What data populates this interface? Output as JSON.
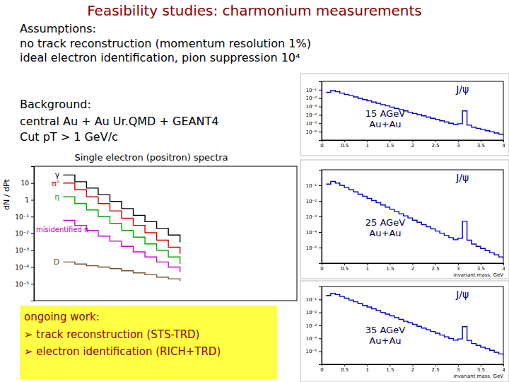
{
  "slide": {
    "title": "Feasibility studies: charmonium measurements",
    "assumptions_heading": "Assumptions:",
    "assumptions": [
      "no track reconstruction (momentum resolution 1%)",
      "ideal electron identification, pion suppression 10⁴"
    ],
    "background_heading": "Background:",
    "background": [
      "central  Au + Au Ur.QMD + GEANT4",
      "Cut pT > 1 GeV/c"
    ],
    "ongoing_heading": "ongoing work:",
    "ongoing": [
      "➢ track reconstruction (STS-TRD)",
      "➢ electron identification (RICH+TRD)"
    ]
  },
  "chart_data": [
    {
      "type": "line",
      "title": "Single electron (positron) spectra",
      "ylabel": "dN / dPt",
      "log": "y",
      "line_style": "step",
      "tick_labels": "y",
      "x": [
        1.0,
        1.2,
        1.4,
        1.6,
        1.8,
        2.0,
        2.2,
        2.4,
        2.6,
        2.8,
        3.0
      ],
      "xlim": [
        0.5,
        5
      ],
      "ylim": [
        1e-06,
        100
      ],
      "yticks": [
        {
          "value": 1e-05,
          "label": "10⁻⁵"
        },
        {
          "value": 0.0001,
          "label": "10⁻⁴"
        },
        {
          "value": 0.001,
          "label": "10⁻³"
        },
        {
          "value": 0.01,
          "label": "10⁻²"
        },
        {
          "value": 0.1,
          "label": "10⁻¹"
        },
        1,
        10
      ],
      "series": [
        {
          "name": "γ",
          "color": "#000000",
          "values": [
            30,
            12,
            5,
            2,
            0.8,
            0.3,
            0.12,
            0.05,
            0.02,
            0.008,
            0.003
          ]
        },
        {
          "name": "π⁰",
          "color": "#dd0000",
          "values": [
            10,
            4,
            1.5,
            0.6,
            0.22,
            0.08,
            0.03,
            0.011,
            0.004,
            0.0015,
            0.0006
          ]
        },
        {
          "name": "η",
          "color": "#00aa00",
          "values": [
            1.5,
            0.6,
            0.25,
            0.1,
            0.04,
            0.015,
            0.006,
            0.0024,
            0.001,
            0.0004,
            0.00015
          ]
        },
        {
          "name": "misidentified π",
          "color": "#cc00cc",
          "values": [
            0.06,
            0.03,
            0.015,
            0.007,
            0.0035,
            0.0017,
            0.0008,
            0.0004,
            0.0002,
            0.0001,
            5e-05
          ]
        },
        {
          "name": "D",
          "color": "#7a5230",
          "values": [
            0.0002,
            0.00015,
            0.00012,
            0.0001,
            8e-05,
            6e-05,
            4.5e-05,
            3.5e-05,
            2.5e-05,
            2e-05,
            1.5e-05
          ]
        }
      ]
    },
    {
      "type": "line",
      "log": "y",
      "line_style": "step",
      "label": [
        "15 AGeV",
        "Au+Au"
      ],
      "peak_label": "J/ψ",
      "peak_x": 3.1,
      "x": [
        0.1,
        0.2,
        0.3,
        0.4,
        0.5,
        0.6,
        0.7,
        0.8,
        0.9,
        1.0,
        1.1,
        1.2,
        1.3,
        1.4,
        1.5,
        1.6,
        1.7,
        1.8,
        1.9,
        2.0,
        2.1,
        2.2,
        2.3,
        2.4,
        2.5,
        2.6,
        2.7,
        2.8,
        2.9,
        3.0,
        3.1,
        3.2,
        3.3,
        3.4,
        3.5,
        3.6,
        3.7,
        3.8,
        3.9,
        4.0
      ],
      "xlim": [
        0,
        4
      ],
      "xticks": [
        0,
        0.5,
        1,
        1.5,
        2,
        2.5,
        3,
        3.5,
        4
      ],
      "ylim": [
        1e-07,
        1
      ],
      "yticks": [
        {
          "value": 1e-06,
          "label": "10⁻⁶"
        },
        {
          "value": 1e-05,
          "label": "10⁻⁵"
        },
        {
          "value": 0.0001,
          "label": "10⁻⁴"
        },
        {
          "value": 0.001,
          "label": "10⁻³"
        },
        {
          "value": 0.01,
          "label": "10⁻²"
        },
        {
          "value": 0.1,
          "label": "10⁻¹"
        }
      ],
      "series": [
        {
          "color": "#0000cc",
          "values": [
            0.05,
            0.08,
            0.06,
            0.04,
            0.028,
            0.02,
            0.014,
            0.0095,
            0.0068,
            0.0048,
            0.0034,
            0.0024,
            0.0017,
            0.0012,
            0.00085,
            0.0006,
            0.00043,
            0.0003,
            0.00021,
            0.00015,
            0.00011,
            7.8e-05,
            5.5e-05,
            3.9e-05,
            2.8e-05,
            2e-05,
            1.4e-05,
            1e-05,
            7.5e-06,
            9e-06,
            0.0003,
            6e-06,
            3.5e-06,
            2.5e-06,
            1.8e-06,
            1.3e-06,
            9.5e-07,
            7e-07,
            5e-07,
            3.6e-07
          ]
        }
      ]
    },
    {
      "type": "line",
      "log": "y",
      "line_style": "step",
      "label": [
        "25 AGeV",
        "Au+Au"
      ],
      "peak_label": "J/ψ",
      "peak_x": 3.1,
      "xlabel": "invariant mass, GeV",
      "x": [
        0.1,
        0.2,
        0.3,
        0.4,
        0.5,
        0.6,
        0.7,
        0.8,
        0.9,
        1.0,
        1.1,
        1.2,
        1.3,
        1.4,
        1.5,
        1.6,
        1.7,
        1.8,
        1.9,
        2.0,
        2.1,
        2.2,
        2.3,
        2.4,
        2.5,
        2.6,
        2.7,
        2.8,
        2.9,
        3.0,
        3.1,
        3.2,
        3.3,
        3.4,
        3.5,
        3.6,
        3.7,
        3.8,
        3.9,
        4.0
      ],
      "xlim": [
        0,
        4
      ],
      "xticks": [
        0,
        0.5,
        1,
        1.5,
        2,
        2.5,
        3,
        3.5,
        4
      ],
      "ylim": [
        1e-06,
        1
      ],
      "yticks": [
        {
          "value": 1e-05,
          "label": "10⁻⁵"
        },
        {
          "value": 0.0001,
          "label": "10⁻⁴"
        },
        {
          "value": 0.001,
          "label": "10⁻³"
        },
        {
          "value": 0.01,
          "label": "10⁻²"
        },
        {
          "value": 0.1,
          "label": "10⁻¹"
        }
      ],
      "series": [
        {
          "color": "#0000cc",
          "values": [
            0.12,
            0.18,
            0.14,
            0.1,
            0.072,
            0.052,
            0.038,
            0.027,
            0.02,
            0.0145,
            0.0105,
            0.0076,
            0.0055,
            0.004,
            0.0029,
            0.0021,
            0.0015,
            0.0011,
            0.0008,
            0.00058,
            0.00042,
            0.0003,
            0.00022,
            0.00016,
            0.000115,
            8.4e-05,
            6e-05,
            4.4e-05,
            3.2e-05,
            4e-05,
            0.0005,
            3e-05,
            1.7e-05,
            1.2e-05,
            8.8e-06,
            6.4e-06,
            4.6e-06,
            3.4e-06,
            2.5e-06,
            1.8e-06
          ]
        }
      ]
    },
    {
      "type": "line",
      "log": "y",
      "line_style": "step",
      "label": [
        "35 AGeV",
        "Au+Au"
      ],
      "peak_label": "J/ψ",
      "peak_x": 3.1,
      "xlabel": "invariant mass, GeV",
      "x": [
        0.1,
        0.2,
        0.3,
        0.4,
        0.5,
        0.6,
        0.7,
        0.8,
        0.9,
        1.0,
        1.1,
        1.2,
        1.3,
        1.4,
        1.5,
        1.6,
        1.7,
        1.8,
        1.9,
        2.0,
        2.1,
        2.2,
        2.3,
        2.4,
        2.5,
        2.6,
        2.7,
        2.8,
        2.9,
        3.0,
        3.1,
        3.2,
        3.3,
        3.4,
        3.5,
        3.6,
        3.7,
        3.8,
        3.9,
        4.0
      ],
      "xlim": [
        0,
        4
      ],
      "xticks": [
        0,
        0.5,
        1,
        1.5,
        2,
        2.5,
        3,
        3.5,
        4
      ],
      "ylim": [
        1e-06,
        1
      ],
      "yticks": [
        {
          "value": 1e-05,
          "label": "10⁻⁵"
        },
        {
          "value": 0.0001,
          "label": "10⁻⁴"
        },
        {
          "value": 0.001,
          "label": "10⁻³"
        },
        {
          "value": 0.01,
          "label": "10⁻²"
        },
        {
          "value": 0.1,
          "label": "10⁻¹"
        }
      ],
      "series": [
        {
          "color": "#0000cc",
          "values": [
            0.2,
            0.3,
            0.24,
            0.17,
            0.125,
            0.09,
            0.066,
            0.048,
            0.035,
            0.026,
            0.019,
            0.014,
            0.01,
            0.0074,
            0.0054,
            0.004,
            0.0029,
            0.0021,
            0.0016,
            0.0012,
            0.00085,
            0.00063,
            0.00046,
            0.00034,
            0.00025,
            0.00018,
            0.00013,
            0.0001,
            7.3e-05,
            9e-05,
            0.0008,
            7e-05,
            4e-05,
            2.9e-05,
            2.1e-05,
            1.6e-05,
            1.2e-05,
            8.5e-06,
            6.3e-06,
            4.6e-06
          ]
        }
      ]
    }
  ]
}
